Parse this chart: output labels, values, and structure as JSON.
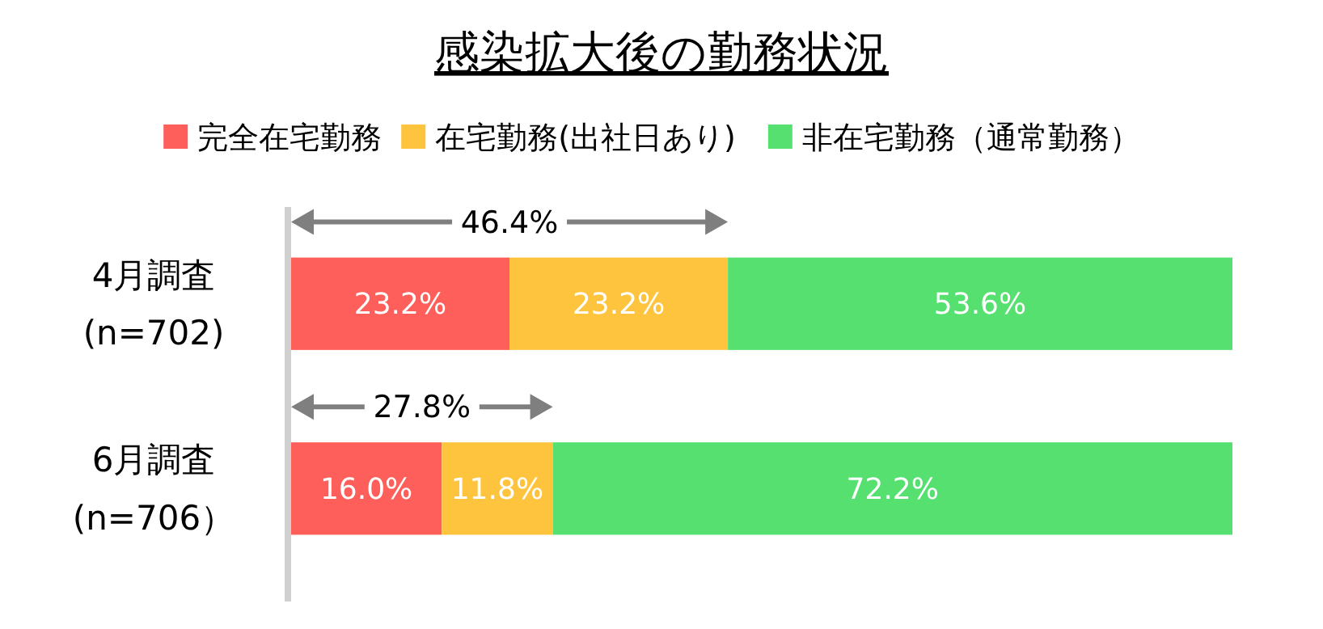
{
  "chart_data": {
    "type": "bar",
    "orientation": "horizontal",
    "stacked": true,
    "title": "感染拡大後の勤務状況",
    "categories": [
      "4月調査\n(n=702)",
      "6月調査\n(n=706）"
    ],
    "series": [
      {
        "name": "完全在宅勤務",
        "color": "#ff5f5a",
        "values": [
          23.2,
          16.0
        ],
        "value_labels": [
          "23.2%",
          "16.0%"
        ]
      },
      {
        "name": "在宅勤務(出社日あり)",
        "color": "#ffc43d",
        "values": [
          23.2,
          11.8
        ],
        "value_labels": [
          "23.2%",
          "11.8%"
        ]
      },
      {
        "name": "非在宅勤務（通常勤務）",
        "color": "#55e070",
        "values": [
          53.6,
          72.2
        ],
        "value_labels": [
          "53.6%",
          "72.2%"
        ]
      }
    ],
    "tick_labels": "y",
    "legend": "top",
    "annotations": [
      "46.4%",
      "27.8%"
    ]
  }
}
